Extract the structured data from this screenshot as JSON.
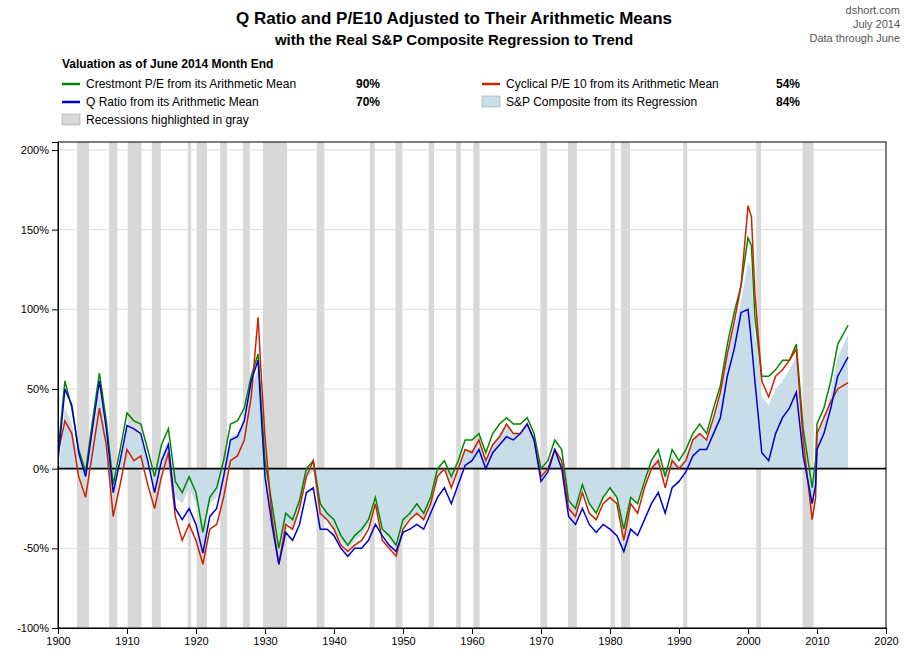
{
  "chart_data": {
    "type": "line",
    "title": "Q Ratio and P/E10 Adjusted to Their Arithmetic Means",
    "subtitle": "with the Real S&P Composite Regression to Trend",
    "top_right_text": [
      "dshort.com",
      "July 2014",
      "Data through June"
    ],
    "annotation": "Recessions highlighted in gray",
    "legend": "top",
    "legend_title": "Valuation as of June 2014 Month End",
    "grid": true,
    "xlim": [
      1900,
      2020
    ],
    "ylim": [
      -1.0,
      2.05
    ],
    "xticks": [
      1900,
      1910,
      1920,
      1930,
      1940,
      1950,
      1960,
      1970,
      1980,
      1990,
      2000,
      2010,
      2020
    ],
    "yticks": [
      {
        "value": -1.0,
        "label": "-100%"
      },
      {
        "value": -0.5,
        "label": "-50%"
      },
      {
        "value": 0.0,
        "label": "0%"
      },
      {
        "value": 0.5,
        "label": "50%"
      },
      {
        "value": 1.0,
        "label": "100%"
      },
      {
        "value": 1.5,
        "label": "150%"
      },
      {
        "value": 2.0,
        "label": "200%"
      }
    ],
    "recession_color": "#d8d8d8",
    "recession_bands": [
      [
        1902.75,
        1904.5
      ],
      [
        1907.4,
        1908.6
      ],
      [
        1910.1,
        1912.1
      ],
      [
        1913.6,
        1914.9
      ],
      [
        1918.8,
        1919.3
      ],
      [
        1920.1,
        1921.6
      ],
      [
        1923.5,
        1924.5
      ],
      [
        1926.8,
        1927.8
      ],
      [
        1929.7,
        1933.2
      ],
      [
        1937.5,
        1938.6
      ],
      [
        1945.2,
        1945.9
      ],
      [
        1948.9,
        1949.9
      ],
      [
        1953.7,
        1954.5
      ],
      [
        1957.7,
        1958.4
      ],
      [
        1960.2,
        1961.1
      ],
      [
        1969.9,
        1970.9
      ],
      [
        1973.9,
        1975.2
      ],
      [
        1980.1,
        1980.7
      ],
      [
        1981.6,
        1982.9
      ],
      [
        1990.6,
        1991.2
      ],
      [
        2001.2,
        2001.9
      ],
      [
        2007.9,
        2009.5
      ]
    ],
    "series": [
      {
        "name": "Crestmont P/E from its Arithmetic Mean",
        "legend_value": "90%",
        "type": "line",
        "color": "#008800",
        "x": [
          1900,
          1901,
          1902,
          1903,
          1904,
          1905,
          1906,
          1907,
          1908,
          1909,
          1910,
          1911,
          1912,
          1913,
          1914,
          1915,
          1916,
          1917,
          1918,
          1919,
          1920,
          1921,
          1922,
          1923,
          1924,
          1925,
          1926,
          1927,
          1928,
          1929,
          1929.5,
          1930,
          1931,
          1932,
          1933,
          1934,
          1935,
          1936,
          1937,
          1938,
          1939,
          1940,
          1941,
          1942,
          1943,
          1944,
          1945,
          1946,
          1947,
          1948,
          1949,
          1950,
          1951,
          1952,
          1953,
          1954,
          1955,
          1956,
          1957,
          1958,
          1959,
          1960,
          1961,
          1962,
          1963,
          1964,
          1965,
          1966,
          1967,
          1968,
          1969,
          1970,
          1971,
          1972,
          1973,
          1974,
          1975,
          1976,
          1977,
          1978,
          1979,
          1980,
          1981,
          1982,
          1983,
          1984,
          1985,
          1986,
          1987,
          1988,
          1989,
          1990,
          1991,
          1992,
          1993,
          1994,
          1995,
          1996,
          1997,
          1998,
          1999,
          2000,
          2000.5,
          2001,
          2002,
          2003,
          2004,
          2005,
          2006,
          2007,
          2008,
          2009.3,
          2009.8,
          2010,
          2011,
          2012,
          2013,
          2014.5
        ],
        "values": [
          0.1,
          0.55,
          0.38,
          0.12,
          -0.02,
          0.3,
          0.6,
          0.3,
          -0.1,
          0.12,
          0.35,
          0.3,
          0.28,
          0.12,
          -0.05,
          0.15,
          0.25,
          -0.08,
          -0.15,
          -0.05,
          -0.15,
          -0.4,
          -0.18,
          -0.12,
          0.05,
          0.28,
          0.3,
          0.38,
          0.58,
          0.72,
          0.38,
          0.05,
          -0.22,
          -0.5,
          -0.28,
          -0.32,
          -0.2,
          0.0,
          0.05,
          -0.22,
          -0.28,
          -0.32,
          -0.42,
          -0.48,
          -0.42,
          -0.38,
          -0.32,
          -0.18,
          -0.38,
          -0.42,
          -0.48,
          -0.32,
          -0.28,
          -0.22,
          -0.28,
          -0.18,
          0.0,
          0.05,
          -0.05,
          0.05,
          0.18,
          0.18,
          0.22,
          0.1,
          0.22,
          0.28,
          0.32,
          0.28,
          0.28,
          0.32,
          0.22,
          0.0,
          0.05,
          0.18,
          0.12,
          -0.2,
          -0.25,
          -0.1,
          -0.22,
          -0.28,
          -0.18,
          -0.12,
          -0.18,
          -0.38,
          -0.18,
          -0.22,
          -0.08,
          0.05,
          0.12,
          -0.05,
          0.12,
          0.05,
          0.12,
          0.22,
          0.28,
          0.22,
          0.38,
          0.52,
          0.78,
          0.98,
          1.15,
          1.45,
          1.4,
          0.95,
          0.58,
          0.58,
          0.62,
          0.68,
          0.68,
          0.78,
          0.25,
          -0.12,
          0.05,
          0.28,
          0.38,
          0.55,
          0.78,
          0.9
        ]
      },
      {
        "name": "Cyclical P/E 10 from its Arithmetic Mean",
        "legend_value": "54%",
        "type": "line",
        "color": "#cc2200",
        "x": [
          1900,
          1901,
          1902,
          1903,
          1904,
          1905,
          1906,
          1907,
          1908,
          1909,
          1910,
          1911,
          1912,
          1913,
          1914,
          1915,
          1916,
          1917,
          1918,
          1919,
          1920,
          1921,
          1922,
          1923,
          1924,
          1925,
          1926,
          1927,
          1928,
          1929,
          1929.5,
          1930,
          1931,
          1932,
          1933,
          1934,
          1935,
          1936,
          1937,
          1938,
          1939,
          1940,
          1941,
          1942,
          1943,
          1944,
          1945,
          1946,
          1947,
          1948,
          1949,
          1950,
          1951,
          1952,
          1953,
          1954,
          1955,
          1956,
          1957,
          1958,
          1959,
          1960,
          1961,
          1962,
          1963,
          1964,
          1965,
          1966,
          1967,
          1968,
          1969,
          1970,
          1971,
          1972,
          1973,
          1974,
          1975,
          1976,
          1977,
          1978,
          1979,
          1980,
          1981,
          1982,
          1983,
          1984,
          1985,
          1986,
          1987,
          1988,
          1989,
          1990,
          1991,
          1992,
          1993,
          1994,
          1995,
          1996,
          1997,
          1998,
          1999,
          2000,
          2000.5,
          2001,
          2002,
          2003,
          2004,
          2005,
          2006,
          2007,
          2008,
          2009.3,
          2009.8,
          2010,
          2011,
          2012,
          2013,
          2014.5
        ],
        "values": [
          0.1,
          0.3,
          0.22,
          -0.05,
          -0.18,
          0.1,
          0.38,
          0.15,
          -0.3,
          -0.1,
          0.12,
          0.05,
          0.08,
          -0.1,
          -0.25,
          -0.05,
          0.1,
          -0.3,
          -0.45,
          -0.35,
          -0.45,
          -0.6,
          -0.38,
          -0.35,
          -0.18,
          0.05,
          0.08,
          0.18,
          0.45,
          0.95,
          0.55,
          0.2,
          -0.3,
          -0.6,
          -0.35,
          -0.38,
          -0.25,
          -0.05,
          0.05,
          -0.28,
          -0.32,
          -0.38,
          -0.48,
          -0.52,
          -0.48,
          -0.45,
          -0.38,
          -0.22,
          -0.45,
          -0.5,
          -0.55,
          -0.38,
          -0.32,
          -0.28,
          -0.32,
          -0.22,
          -0.05,
          0.0,
          -0.12,
          0.0,
          0.12,
          0.1,
          0.18,
          0.05,
          0.15,
          0.2,
          0.28,
          0.22,
          0.22,
          0.28,
          0.18,
          -0.05,
          0.0,
          0.12,
          0.05,
          -0.25,
          -0.3,
          -0.15,
          -0.28,
          -0.32,
          -0.22,
          -0.18,
          -0.22,
          -0.45,
          -0.22,
          -0.28,
          -0.12,
          0.0,
          0.05,
          -0.12,
          0.05,
          0.0,
          0.05,
          0.18,
          0.22,
          0.18,
          0.32,
          0.48,
          0.72,
          0.92,
          1.15,
          1.65,
          1.58,
          1.1,
          0.55,
          0.45,
          0.58,
          0.62,
          0.68,
          0.75,
          0.18,
          -0.32,
          -0.18,
          0.22,
          0.32,
          0.42,
          0.5,
          0.54
        ]
      },
      {
        "name": "Q Ratio from its Arithmetic Mean",
        "legend_value": "70%",
        "type": "line",
        "color": "#0000cc",
        "x": [
          1900,
          1901,
          1902,
          1903,
          1904,
          1905,
          1906,
          1907,
          1908,
          1909,
          1910,
          1911,
          1912,
          1913,
          1914,
          1915,
          1916,
          1917,
          1918,
          1919,
          1920,
          1921,
          1922,
          1923,
          1924,
          1925,
          1926,
          1927,
          1928,
          1929,
          1929.5,
          1930,
          1931,
          1932,
          1933,
          1934,
          1935,
          1936,
          1937,
          1938,
          1939,
          1940,
          1941,
          1942,
          1943,
          1944,
          1945,
          1946,
          1947,
          1948,
          1949,
          1950,
          1951,
          1952,
          1953,
          1954,
          1955,
          1956,
          1957,
          1958,
          1959,
          1960,
          1961,
          1962,
          1963,
          1964,
          1965,
          1966,
          1967,
          1968,
          1969,
          1970,
          1971,
          1972,
          1973,
          1974,
          1975,
          1976,
          1977,
          1978,
          1979,
          1980,
          1981,
          1982,
          1983,
          1984,
          1985,
          1986,
          1987,
          1988,
          1989,
          1990,
          1991,
          1992,
          1993,
          1994,
          1995,
          1996,
          1997,
          1998,
          1999,
          2000,
          2000.3,
          2001,
          2002,
          2003,
          2004,
          2005,
          2006,
          2007,
          2008,
          2009.3,
          2009.8,
          2010,
          2011,
          2012,
          2013,
          2014.5
        ],
        "values": [
          0.05,
          0.5,
          0.4,
          0.1,
          -0.05,
          0.25,
          0.55,
          0.25,
          -0.15,
          0.05,
          0.27,
          0.25,
          0.22,
          0.05,
          -0.15,
          0.05,
          0.15,
          -0.25,
          -0.32,
          -0.25,
          -0.35,
          -0.53,
          -0.3,
          -0.25,
          -0.05,
          0.18,
          0.2,
          0.3,
          0.55,
          0.68,
          0.3,
          -0.05,
          -0.35,
          -0.6,
          -0.4,
          -0.45,
          -0.35,
          -0.15,
          -0.12,
          -0.38,
          -0.38,
          -0.42,
          -0.5,
          -0.55,
          -0.5,
          -0.5,
          -0.45,
          -0.35,
          -0.42,
          -0.48,
          -0.52,
          -0.4,
          -0.38,
          -0.35,
          -0.38,
          -0.28,
          -0.18,
          -0.12,
          -0.22,
          -0.1,
          0.02,
          0.05,
          0.12,
          0.0,
          0.1,
          0.15,
          0.2,
          0.18,
          0.22,
          0.28,
          0.18,
          -0.08,
          -0.02,
          0.12,
          0.0,
          -0.3,
          -0.35,
          -0.25,
          -0.35,
          -0.4,
          -0.35,
          -0.38,
          -0.42,
          -0.52,
          -0.38,
          -0.42,
          -0.32,
          -0.22,
          -0.15,
          -0.28,
          -0.12,
          -0.08,
          -0.02,
          0.08,
          0.12,
          0.12,
          0.22,
          0.32,
          0.58,
          0.75,
          0.98,
          1.0,
          0.88,
          0.55,
          0.1,
          0.05,
          0.22,
          0.32,
          0.38,
          0.48,
          0.08,
          -0.22,
          -0.1,
          0.12,
          0.22,
          0.38,
          0.58,
          0.7
        ]
      },
      {
        "name": "S&P Composite from its Regression",
        "legend_value": "84%",
        "type": "area",
        "color": "#c8dde8",
        "x": [
          1900,
          1901,
          1902,
          1903,
          1904,
          1905,
          1906,
          1907,
          1908,
          1909,
          1910,
          1911,
          1912,
          1913,
          1914,
          1915,
          1916,
          1917,
          1918,
          1919,
          1920,
          1921,
          1922,
          1923,
          1924,
          1925,
          1926,
          1927,
          1928,
          1929,
          1929.5,
          1930,
          1931,
          1932,
          1933,
          1934,
          1935,
          1936,
          1937,
          1938,
          1939,
          1940,
          1941,
          1942,
          1943,
          1944,
          1945,
          1946,
          1947,
          1948,
          1949,
          1950,
          1951,
          1952,
          1953,
          1954,
          1955,
          1956,
          1957,
          1958,
          1959,
          1960,
          1961,
          1962,
          1963,
          1964,
          1965,
          1966,
          1967,
          1968,
          1969,
          1970,
          1971,
          1972,
          1973,
          1974,
          1975,
          1976,
          1977,
          1978,
          1979,
          1980,
          1981,
          1982,
          1983,
          1984,
          1985,
          1986,
          1987,
          1988,
          1989,
          1990,
          1991,
          1992,
          1993,
          1994,
          1995,
          1996,
          1997,
          1998,
          1999,
          2000,
          2000.5,
          2001,
          2002,
          2003,
          2004,
          2005,
          2006,
          2007,
          2008,
          2009.3,
          2009.8,
          2010,
          2011,
          2012,
          2013,
          2014.5
        ],
        "values": [
          -0.05,
          0.38,
          0.28,
          0.05,
          -0.08,
          0.2,
          0.48,
          0.2,
          -0.18,
          0.05,
          0.25,
          0.22,
          0.2,
          0.05,
          -0.1,
          0.08,
          0.18,
          -0.18,
          -0.22,
          -0.12,
          -0.22,
          -0.45,
          -0.22,
          -0.18,
          -0.02,
          0.2,
          0.22,
          0.32,
          0.52,
          0.62,
          0.28,
          -0.02,
          -0.28,
          -0.55,
          -0.32,
          -0.38,
          -0.25,
          -0.05,
          -0.02,
          -0.3,
          -0.32,
          -0.38,
          -0.45,
          -0.52,
          -0.45,
          -0.42,
          -0.35,
          -0.2,
          -0.4,
          -0.45,
          -0.5,
          -0.38,
          -0.32,
          -0.28,
          -0.32,
          -0.22,
          -0.05,
          0.0,
          -0.1,
          0.02,
          0.12,
          0.12,
          0.18,
          0.05,
          0.15,
          0.22,
          0.28,
          0.22,
          0.22,
          0.28,
          0.18,
          -0.05,
          0.0,
          0.12,
          0.05,
          -0.22,
          -0.28,
          -0.12,
          -0.22,
          -0.28,
          -0.18,
          -0.12,
          -0.18,
          -0.4,
          -0.18,
          -0.22,
          -0.08,
          0.02,
          0.08,
          -0.08,
          0.08,
          0.02,
          0.08,
          0.18,
          0.22,
          0.18,
          0.32,
          0.48,
          0.72,
          0.88,
          1.05,
          1.3,
          1.25,
          0.85,
          0.45,
          0.4,
          0.5,
          0.55,
          0.62,
          0.7,
          0.12,
          -0.22,
          -0.05,
          0.2,
          0.3,
          0.48,
          0.7,
          0.84
        ]
      }
    ]
  }
}
